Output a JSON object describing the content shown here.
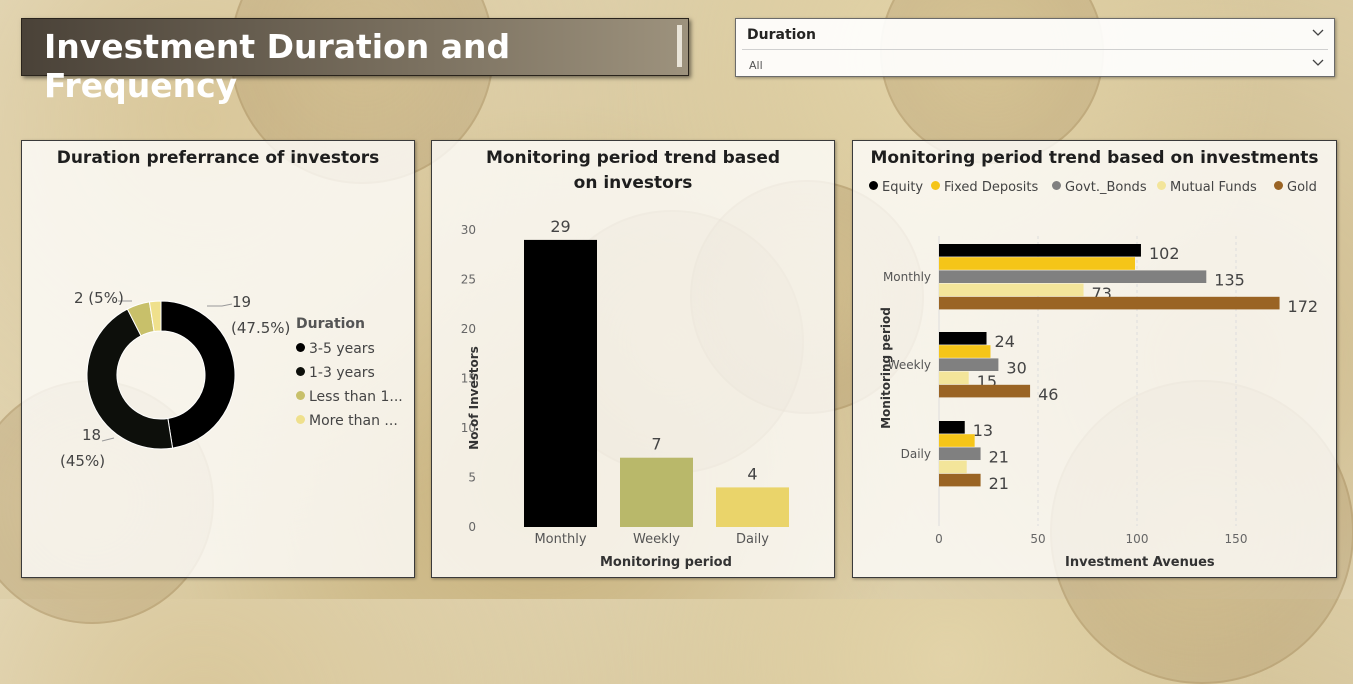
{
  "header": {
    "title": "Investment Duration and Frequency"
  },
  "slicer": {
    "label": "Duration",
    "selected": "All"
  },
  "colors": {
    "black": "#000000",
    "near_black": "#0d0f0b",
    "olive": "#b9b86a",
    "khaki": "#d4cc6a",
    "pale_yellow": "#efe08c",
    "gold_yellow": "#f5c518",
    "gray": "#808080",
    "light_yellow": "#f3e59a",
    "brown": "#9a6424"
  },
  "donut": {
    "title": "Duration preferrance of investors",
    "legend_title": "Duration",
    "legend": [
      {
        "label": "3-5 years",
        "color": "#000000"
      },
      {
        "label": "1-3 years",
        "color": "#0d0f0b"
      },
      {
        "label": "Less than 1...",
        "color": "#c8c06a"
      },
      {
        "label": "More than ...",
        "color": "#efe08c"
      }
    ],
    "labels": {
      "a_value": "19",
      "a_pct": "(47.5%)",
      "b_value": "18",
      "b_pct": "(45%)",
      "c_text": "2 (5%)"
    }
  },
  "chart_data": [
    {
      "type": "pie",
      "title": "Duration preferrance of investors",
      "categories": [
        "3-5 years",
        "1-3 years",
        "Less than 1...",
        "More than ..."
      ],
      "values": [
        19,
        18,
        2,
        1
      ],
      "legend": "right"
    },
    {
      "type": "bar",
      "title": "Monitoring period trend based on investors",
      "xlabel": "Monitoring period",
      "ylabel": "No.of Investors",
      "categories": [
        "Monthly",
        "Weekly",
        "Daily"
      ],
      "values": [
        29,
        7,
        4
      ],
      "ylim": [
        0,
        30
      ],
      "yticks": [
        "0",
        "5",
        "10",
        "15",
        "20",
        "25",
        "30"
      ],
      "grid": false
    },
    {
      "type": "bar",
      "orientation": "horizontal",
      "title": "Monitoring period trend based on investments",
      "xlabel": "Investment Avenues",
      "ylabel": "Monitoring period",
      "categories": [
        "Monthly",
        "Weekly",
        "Daily"
      ],
      "series": [
        {
          "name": "Equity",
          "values": [
            102,
            24,
            13
          ]
        },
        {
          "name": "Fixed Deposits",
          "values": [
            99,
            26,
            18
          ]
        },
        {
          "name": "Govt._Bonds",
          "values": [
            135,
            30,
            21
          ]
        },
        {
          "name": "Mutual Funds",
          "values": [
            73,
            15,
            14
          ]
        },
        {
          "name": "Gold",
          "values": [
            172,
            46,
            21
          ]
        }
      ],
      "xticks": [
        "0",
        "50",
        "100",
        "150"
      ],
      "xlim": [
        0,
        180
      ],
      "legend": "top"
    }
  ],
  "bar_chart": {
    "title": "Monitoring period trend based on investors",
    "xlabel": "Monitoring period",
    "ylabel": "No.of Investors",
    "yticks": [
      "30",
      "25",
      "20",
      "15",
      "10",
      "5",
      "0"
    ],
    "categories": [
      "Monthly",
      "Weekly",
      "Daily"
    ],
    "value_labels": [
      "29",
      "7",
      "4"
    ]
  },
  "hbar_chart": {
    "title": "Monitoring period trend based on investments",
    "xlabel": "Investment Avenues",
    "ylabel": "Monitoring period",
    "legend": [
      "Equity",
      "Fixed Deposits",
      "Govt._Bonds",
      "Mutual Funds",
      "Gold"
    ],
    "categories": [
      "Monthly",
      "Weekly",
      "Daily"
    ],
    "xticks": [
      "0",
      "50",
      "100",
      "150"
    ],
    "data_labels": {
      "monthly": [
        "102",
        "135",
        "73",
        "172"
      ],
      "weekly": [
        "24",
        "30",
        "15",
        "46"
      ],
      "daily": [
        "13",
        "21",
        "21"
      ]
    }
  }
}
